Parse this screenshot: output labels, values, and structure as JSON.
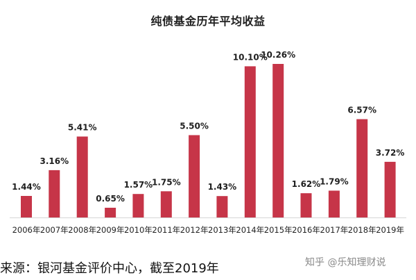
{
  "chart_data": {
    "type": "bar",
    "title": "纯债基金历年平均收益",
    "categories": [
      "2006年",
      "2007年",
      "2008年",
      "2009年",
      "2010年",
      "2011年",
      "2012年",
      "2013年",
      "2014年",
      "2015年",
      "2016年",
      "2017年",
      "2018年",
      "2019年"
    ],
    "values": [
      1.44,
      3.16,
      5.41,
      0.65,
      1.57,
      1.75,
      5.5,
      1.43,
      10.1,
      10.26,
      1.62,
      1.79,
      6.57,
      3.72
    ],
    "value_suffix": "%",
    "xlabel": "",
    "ylabel": "",
    "ylim": [
      0,
      10.26
    ],
    "grid": false,
    "legend": "none",
    "bar_color": "#c63548"
  },
  "source": {
    "text": "来源：银河基金评价中心，截至2019年"
  },
  "watermark": {
    "text": "知乎 @乐知理财说"
  }
}
